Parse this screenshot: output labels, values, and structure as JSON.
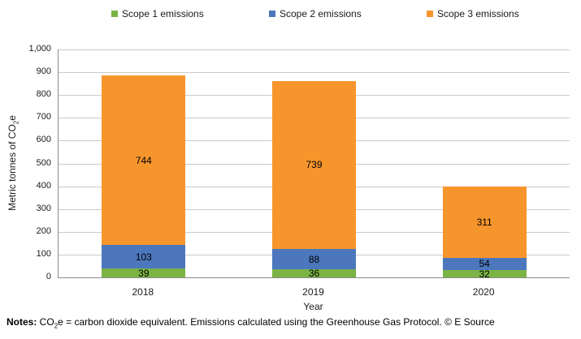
{
  "chart_data": {
    "type": "bar",
    "stacked": true,
    "categories": [
      "2018",
      "2019",
      "2020"
    ],
    "series": [
      {
        "name": "Scope 1 emissions",
        "color": "#7bb444",
        "values": [
          39,
          36,
          32
        ]
      },
      {
        "name": "Scope 2 emissions",
        "color": "#4c77bd",
        "values": [
          103,
          88,
          54
        ]
      },
      {
        "name": "Scope 3 emissions",
        "color": "#f7952d",
        "values": [
          744,
          739,
          311
        ]
      }
    ],
    "xlabel": "Year",
    "ylabel_prefix": "Metric tonnes of CO",
    "ylabel_sub": "2",
    "ylabel_suffix": "e",
    "ylim": [
      0,
      1000
    ],
    "ytick_step": 100,
    "yticks": [
      "0",
      "100",
      "200",
      "300",
      "400",
      "500",
      "600",
      "700",
      "800",
      "900",
      "1,000"
    ],
    "grid": true,
    "legend_position": "top",
    "data_labels_visible": true
  },
  "colors": {
    "gridline": "#c9c9c9",
    "axis_line": "#8c8c8c",
    "text": "#000000"
  },
  "notes": {
    "label": "Notes:",
    "part1": " CO",
    "sub": "2",
    "part2": "e = carbon dioxide equivalent. Emissions calculated using the Greenhouse Gas Protocol. © E Source"
  }
}
